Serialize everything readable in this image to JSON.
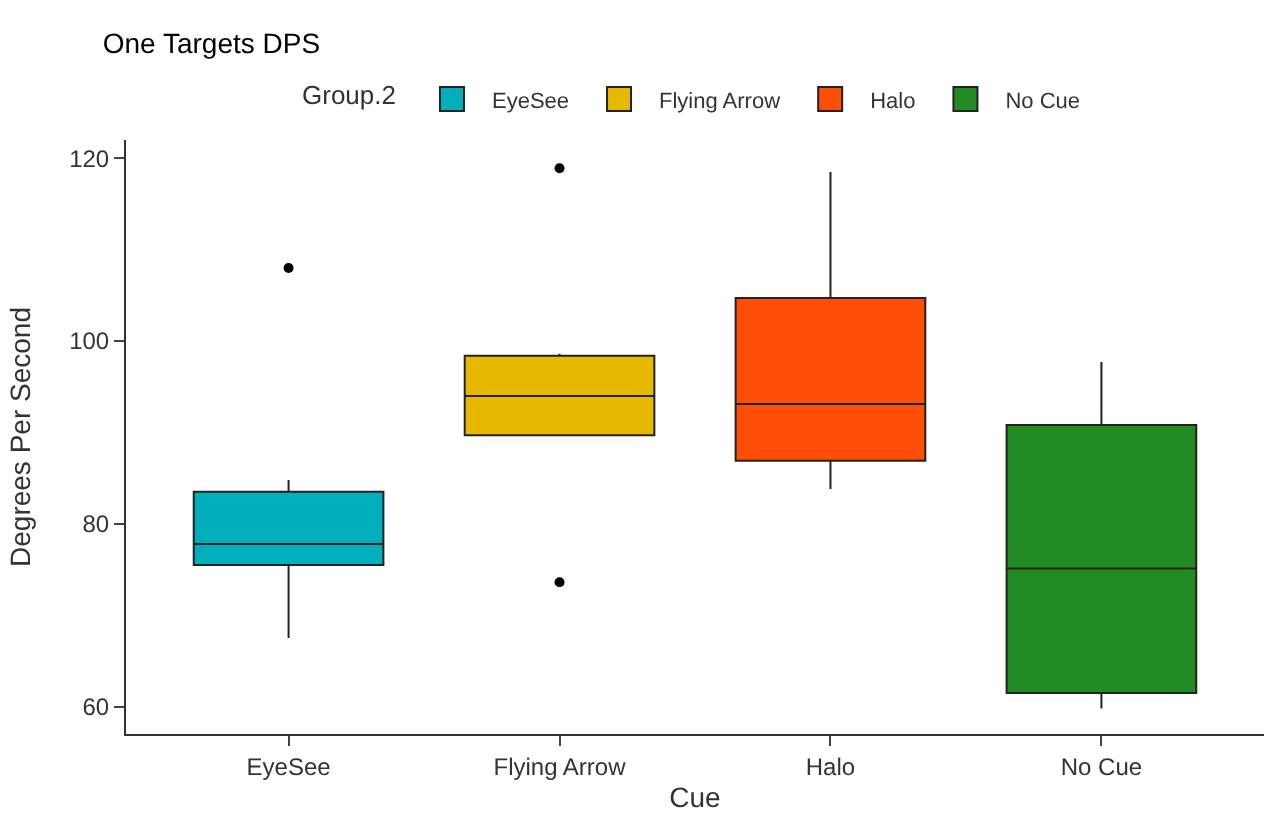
{
  "chart_data": {
    "type": "box",
    "title": "One Targets DPS",
    "xlabel": "Cue",
    "ylabel": "Degrees Per Second",
    "legend_title": "Group.2",
    "categories": [
      "EyeSee",
      "Flying Arrow",
      "Halo",
      "No Cue"
    ],
    "series": [
      {
        "name": "EyeSee",
        "color": "#00afbb",
        "boxes": [
          {
            "low": 67.5,
            "q1": 75.5,
            "median": 77.8,
            "q3": 83.5,
            "high": 84.8,
            "outliers": [
              108
            ]
          },
          null,
          null,
          null
        ]
      },
      {
        "name": "Flying Arrow",
        "color": "#e7b800",
        "boxes": [
          null,
          {
            "low": 89.7,
            "q1": 89.7,
            "median": 94,
            "q3": 98.4,
            "high": 98.6,
            "outliers": [
              118.9,
              73.6
            ]
          },
          null,
          null
        ]
      },
      {
        "name": "Halo",
        "color": "#fc4e07",
        "boxes": [
          null,
          null,
          {
            "low": 83.8,
            "q1": 86.9,
            "median": 93.1,
            "q3": 104.7,
            "high": 118.5
          },
          null
        ]
      },
      {
        "name": "No Cue",
        "color": "#228b22",
        "boxes": [
          null,
          null,
          null,
          {
            "low": 59.8,
            "q1": 61.5,
            "median": 75.1,
            "q3": 90.8,
            "high": 97.7
          }
        ]
      }
    ],
    "ylim": [
      57,
      122
    ],
    "yticks": [
      60,
      80,
      100,
      120
    ],
    "legend": "top"
  }
}
